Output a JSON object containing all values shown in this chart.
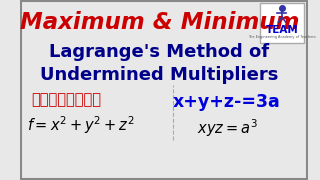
{
  "bg_color": "#e8e8e8",
  "title_text": "Maximum & Minimum",
  "title_color": "#cc0000",
  "line2_text": "Lagrange's Method of",
  "line3_text": "Undermined Multipliers",
  "lines_color": "#00008b",
  "telugu_text": "తెలుగులో",
  "telugu_color": "#cc0000",
  "formula1_text": "$f = x^2 + y^2 + z^2$",
  "formula1_color": "#000000",
  "formula2_text": "x+y+z-=3a",
  "formula2_color": "#0000dd",
  "formula3_text": "$xyz = a^3$",
  "formula3_color": "#000000",
  "team_text": "TEAM",
  "team_color": "#0000cc",
  "border_color": "#888888"
}
